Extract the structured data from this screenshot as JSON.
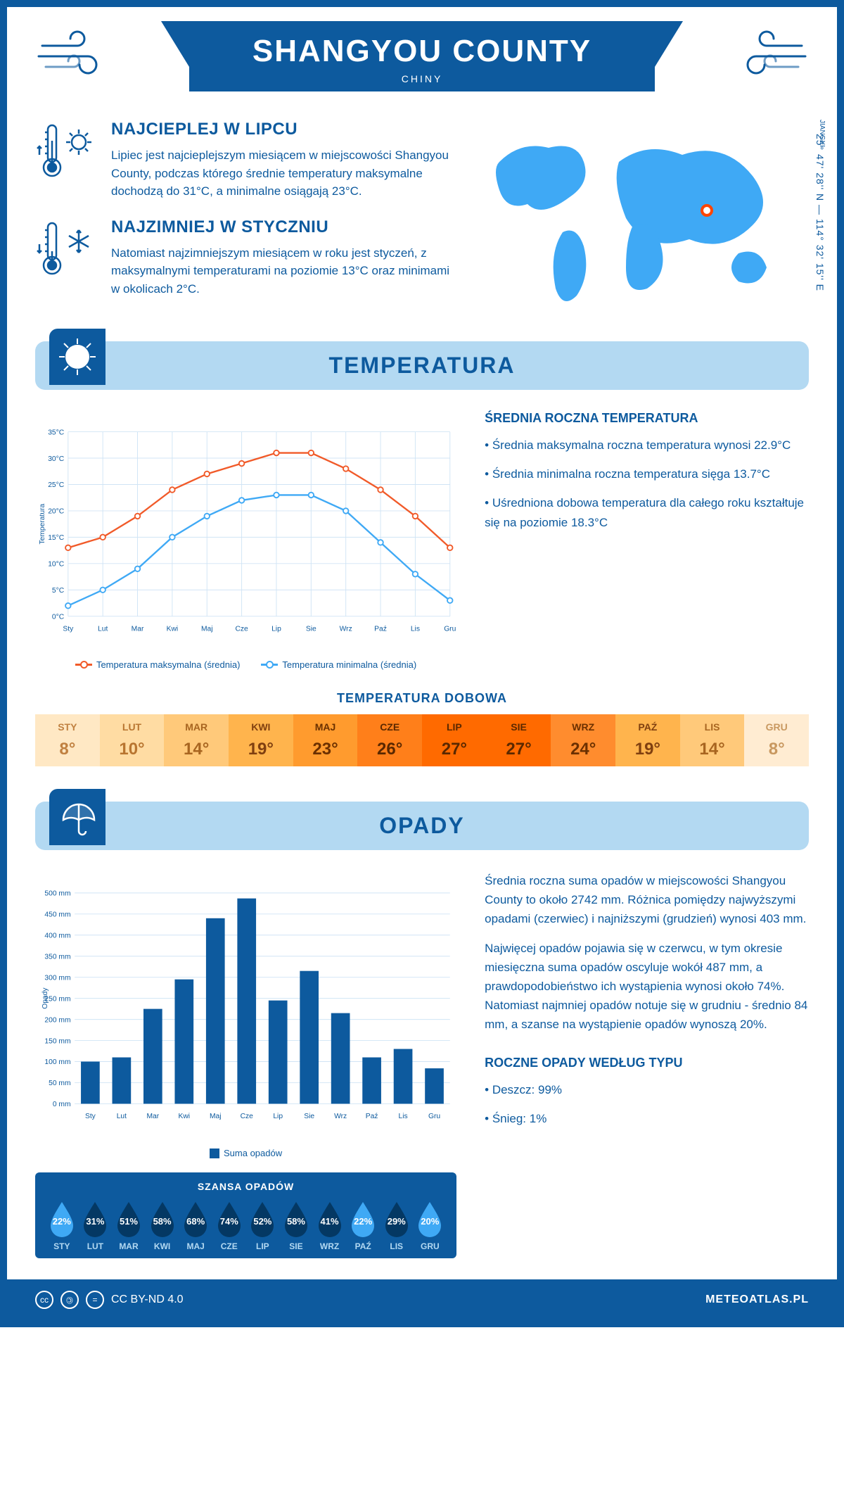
{
  "header": {
    "title": "SHANGYOU COUNTY",
    "subtitle": "CHINY"
  },
  "location": {
    "region": "JIANGXI",
    "coords": "25° 47' 28'' N — 114° 32' 15'' E"
  },
  "facts": {
    "hot": {
      "title": "NAJCIEPLEJ W LIPCU",
      "text": "Lipiec jest najcieplejszym miesiącem w miejscowości Shangyou County, podczas którego średnie temperatury maksymalne dochodzą do 31°C, a minimalne osiągają 23°C."
    },
    "cold": {
      "title": "NAJZIMNIEJ W STYCZNIU",
      "text": "Natomiast najzimniejszym miesiącem w roku jest styczeń, z maksymalnymi temperaturami na poziomie 13°C oraz minimami w okolicach 2°C."
    }
  },
  "sections": {
    "temperature": "TEMPERATURA",
    "precipitation": "OPADY"
  },
  "temp_chart": {
    "type": "line",
    "months": [
      "Sty",
      "Lut",
      "Mar",
      "Kwi",
      "Maj",
      "Cze",
      "Lip",
      "Sie",
      "Wrz",
      "Paź",
      "Lis",
      "Gru"
    ],
    "max_values": [
      13,
      15,
      19,
      24,
      27,
      29,
      31,
      31,
      28,
      24,
      19,
      13
    ],
    "min_values": [
      2,
      5,
      9,
      15,
      19,
      22,
      23,
      23,
      20,
      14,
      8,
      3
    ],
    "max_color": "#f15a29",
    "min_color": "#3fa9f5",
    "ylabel": "Temperatura",
    "ylim": [
      0,
      35
    ],
    "ytick_step": 5,
    "grid_color": "#d0e4f5",
    "legend_max": "Temperatura maksymalna (średnia)",
    "legend_min": "Temperatura minimalna (średnia)"
  },
  "temp_side": {
    "title": "ŚREDNIA ROCZNA TEMPERATURA",
    "items": [
      "Średnia maksymalna roczna temperatura wynosi 22.9°C",
      "Średnia minimalna roczna temperatura sięga 13.7°C",
      "Uśredniona dobowa temperatura dla całego roku kształtuje się na poziomie 18.3°C"
    ]
  },
  "daily_temp": {
    "title": "TEMPERATURA DOBOWA",
    "months": [
      "STY",
      "LUT",
      "MAR",
      "KWI",
      "MAJ",
      "CZE",
      "LIP",
      "SIE",
      "WRZ",
      "PAŹ",
      "LIS",
      "GRU"
    ],
    "values": [
      "8°",
      "10°",
      "14°",
      "19°",
      "23°",
      "26°",
      "27°",
      "27°",
      "24°",
      "19°",
      "14°",
      "8°"
    ],
    "colors": [
      "#ffe8c4",
      "#ffdca3",
      "#ffc97a",
      "#ffb44d",
      "#ff9b2e",
      "#ff7f1a",
      "#ff6a00",
      "#ff6a00",
      "#ff8c2e",
      "#ffb44d",
      "#ffc97a",
      "#ffecd2"
    ],
    "text_colors": [
      "#c08040",
      "#b87530",
      "#a86520",
      "#804010",
      "#6b3000",
      "#5a2800",
      "#5a2800",
      "#5a2800",
      "#6b3000",
      "#804010",
      "#a86520",
      "#c89860"
    ]
  },
  "precip_chart": {
    "type": "bar",
    "months": [
      "Sty",
      "Lut",
      "Mar",
      "Kwi",
      "Maj",
      "Cze",
      "Lip",
      "Sie",
      "Wrz",
      "Paź",
      "Lis",
      "Gru"
    ],
    "values": [
      100,
      110,
      225,
      295,
      440,
      487,
      245,
      315,
      215,
      110,
      130,
      84
    ],
    "bar_color": "#0d5a9e",
    "ylabel": "Opady",
    "ylim": [
      0,
      500
    ],
    "ytick_step": 50,
    "grid_color": "#d0e4f5",
    "legend": "Suma opadów"
  },
  "precip_side": {
    "para1": "Średnia roczna suma opadów w miejscowości Shangyou County to około 2742 mm. Różnica pomiędzy najwyższymi opadami (czerwiec) i najniższymi (grudzień) wynosi 403 mm.",
    "para2": "Najwięcej opadów pojawia się w czerwcu, w tym okresie miesięczna suma opadów oscyluje wokół 487 mm, a prawdopodobieństwo ich wystąpienia wynosi około 74%. Natomiast najmniej opadów notuje się w grudniu - średnio 84 mm, a szanse na wystąpienie opadów wynoszą 20%.",
    "type_title": "ROCZNE OPADY WEDŁUG TYPU",
    "type_items": [
      "Deszcz: 99%",
      "Śnieg: 1%"
    ]
  },
  "rain_chance": {
    "title": "SZANSA OPADÓW",
    "months": [
      "STY",
      "LUT",
      "MAR",
      "KWI",
      "MAJ",
      "CZE",
      "LIP",
      "SIE",
      "WRZ",
      "PAŹ",
      "LIS",
      "GRU"
    ],
    "percents": [
      "22%",
      "31%",
      "51%",
      "58%",
      "68%",
      "74%",
      "52%",
      "58%",
      "41%",
      "22%",
      "29%",
      "20%"
    ],
    "drop_colors": [
      "#3fa9f5",
      "#043863",
      "#043863",
      "#043863",
      "#043863",
      "#043863",
      "#043863",
      "#043863",
      "#043863",
      "#3fa9f5",
      "#043863",
      "#3fa9f5"
    ]
  },
  "footer": {
    "license": "CC BY-ND 4.0",
    "site": "METEOATLAS.PL"
  }
}
